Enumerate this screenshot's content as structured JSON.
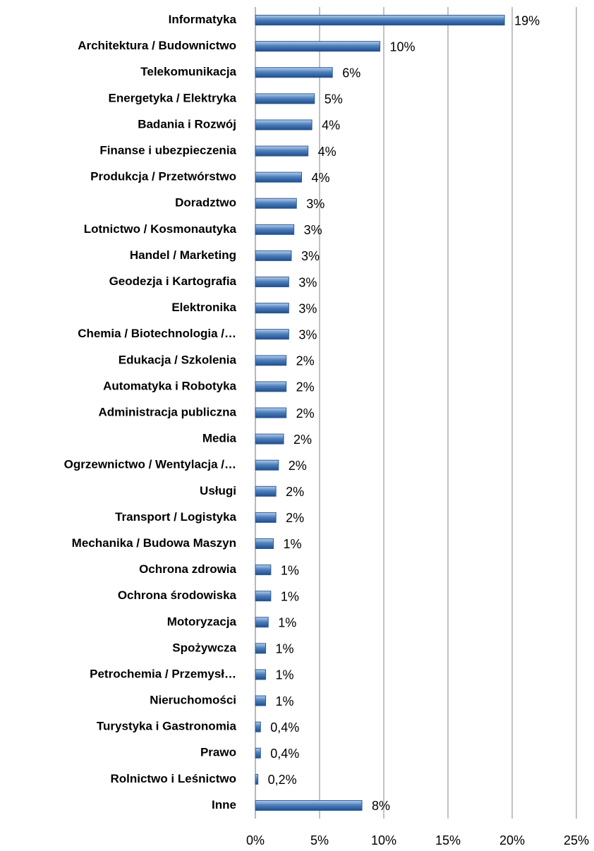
{
  "chart_data": {
    "type": "bar",
    "orientation": "horizontal",
    "categories": [
      "Informatyka",
      "Architektura / Budownictwo",
      "Telekomunikacja",
      "Energetyka / Elektryka",
      "Badania i Rozwój",
      "Finanse i ubezpieczenia",
      "Produkcja / Przetwórstwo",
      "Doradztwo",
      "Lotnictwo / Kosmonautyka",
      "Handel / Marketing",
      "Geodezja i Kartografia",
      "Elektronika",
      "Chemia / Biotechnologia /…",
      "Edukacja / Szkolenia",
      "Automatyka i Robotyka",
      "Administracja publiczna",
      "Media",
      "Ogrzewnictwo / Wentylacja /…",
      "Usługi",
      "Transport / Logistyka",
      "Mechanika / Budowa Maszyn",
      "Ochrona zdrowia",
      "Ochrona środowiska",
      "Motoryzacja",
      "Spożywcza",
      "Petrochemia / Przemysł…",
      "Nieruchomości",
      "Turystyka i Gastronomia",
      "Prawo",
      "Rolnictwo i Leśnictwo",
      "Inne"
    ],
    "values": [
      19.4,
      9.7,
      6.0,
      4.6,
      4.4,
      4.1,
      3.6,
      3.2,
      3.0,
      2.8,
      2.6,
      2.6,
      2.6,
      2.4,
      2.4,
      2.4,
      2.2,
      1.8,
      1.6,
      1.6,
      1.4,
      1.2,
      1.2,
      1.0,
      0.8,
      0.8,
      0.8,
      0.4,
      0.4,
      0.2,
      8.3
    ],
    "value_labels": [
      "19%",
      "10%",
      "6%",
      "5%",
      "4%",
      "4%",
      "4%",
      "3%",
      "3%",
      "3%",
      "3%",
      "3%",
      "3%",
      "2%",
      "2%",
      "2%",
      "2%",
      "2%",
      "2%",
      "2%",
      "1%",
      "1%",
      "1%",
      "1%",
      "1%",
      "1%",
      "1%",
      "0,4%",
      "0,4%",
      "0,2%",
      "8%"
    ],
    "color": "#4f81bd",
    "xlim": [
      0,
      25
    ],
    "xticks": [
      {
        "value": 0,
        "label": "0%"
      },
      {
        "value": 5,
        "label": "5%"
      },
      {
        "value": 10,
        "label": "10%"
      },
      {
        "value": 15,
        "label": "15%"
      },
      {
        "value": 20,
        "label": "20%"
      },
      {
        "value": 25,
        "label": "25%"
      }
    ],
    "grid": true
  }
}
